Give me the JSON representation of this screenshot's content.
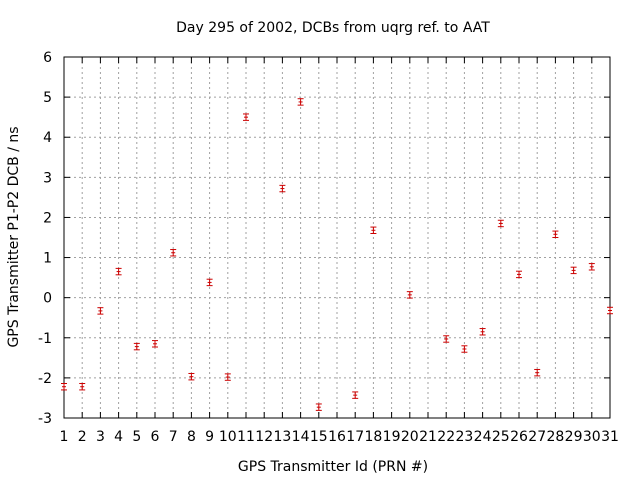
{
  "chart_data": {
    "type": "scatter",
    "title": "Day 295 of 2002, DCBs from uqrg ref. to AAT",
    "xlabel": "GPS Transmitter Id (PRN #)",
    "ylabel": "GPS Transmitter P1-P2 DCB / ns",
    "xlim": [
      1,
      31
    ],
    "ylim": [
      -3,
      6
    ],
    "xticks": [
      1,
      2,
      3,
      4,
      5,
      6,
      7,
      8,
      9,
      10,
      11,
      12,
      13,
      14,
      15,
      16,
      17,
      18,
      19,
      20,
      21,
      22,
      23,
      24,
      25,
      26,
      27,
      28,
      29,
      30,
      31
    ],
    "yticks": [
      -3,
      -2,
      -1,
      0,
      1,
      2,
      3,
      4,
      5,
      6
    ],
    "grid": true,
    "marker_color": "#cc0000",
    "series": [
      {
        "points": [
          {
            "x": 1,
            "y": -2.22,
            "err": 0.08
          },
          {
            "x": 2,
            "y": -2.22,
            "err": 0.08
          },
          {
            "x": 3,
            "y": -0.33,
            "err": 0.08
          },
          {
            "x": 4,
            "y": 0.65,
            "err": 0.08
          },
          {
            "x": 5,
            "y": -1.22,
            "err": 0.08
          },
          {
            "x": 6,
            "y": -1.15,
            "err": 0.08
          },
          {
            "x": 7,
            "y": 1.12,
            "err": 0.08
          },
          {
            "x": 8,
            "y": -1.97,
            "err": 0.08
          },
          {
            "x": 9,
            "y": 0.38,
            "err": 0.08
          },
          {
            "x": 10,
            "y": -1.98,
            "err": 0.08
          },
          {
            "x": 11,
            "y": 4.5,
            "err": 0.08
          },
          {
            "x": 13,
            "y": 2.72,
            "err": 0.08
          },
          {
            "x": 14,
            "y": 4.88,
            "err": 0.08
          },
          {
            "x": 15,
            "y": -2.73,
            "err": 0.08
          },
          {
            "x": 17,
            "y": -2.43,
            "err": 0.08
          },
          {
            "x": 18,
            "y": 1.68,
            "err": 0.08
          },
          {
            "x": 20,
            "y": 0.07,
            "err": 0.08
          },
          {
            "x": 22,
            "y": -1.03,
            "err": 0.08
          },
          {
            "x": 23,
            "y": -1.28,
            "err": 0.08
          },
          {
            "x": 24,
            "y": -0.85,
            "err": 0.08
          },
          {
            "x": 25,
            "y": 1.85,
            "err": 0.08
          },
          {
            "x": 26,
            "y": 0.58,
            "err": 0.08
          },
          {
            "x": 27,
            "y": -1.87,
            "err": 0.08
          },
          {
            "x": 28,
            "y": 1.58,
            "err": 0.08
          },
          {
            "x": 29,
            "y": 0.68,
            "err": 0.08
          },
          {
            "x": 30,
            "y": 0.77,
            "err": 0.08
          },
          {
            "x": 31,
            "y": -0.32,
            "err": 0.08
          }
        ]
      }
    ]
  }
}
